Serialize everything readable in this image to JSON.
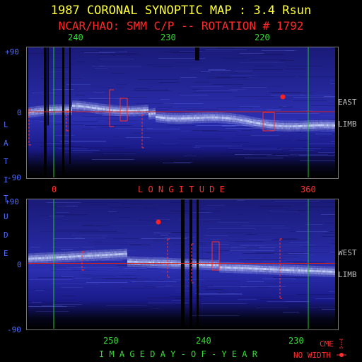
{
  "title": "1987 CORONAL SYNOPTIC MAP : 3.4 Rsun",
  "subtitle": "NCAR/HAO: SMM C/P -- ROTATION # 1792",
  "top_axis_labels": [
    "240",
    "230",
    "220"
  ],
  "lat_labels": [
    "+90",
    "0",
    "-90"
  ],
  "lat_title_letters": [
    "L",
    "A",
    "T",
    "I",
    "T",
    "U",
    "D",
    "E"
  ],
  "longitude_labels": [
    "0",
    "360"
  ],
  "longitude_title": "L O N G I T U D E",
  "side_labels": {
    "east": "EAST",
    "west": "WEST",
    "limb": "LIMB"
  },
  "day_labels": [
    "250",
    "240",
    "230"
  ],
  "bottom_title": "I M A G E   D A Y - O F - Y E A R",
  "legend": {
    "cme": "CME",
    "no_width": "NO WIDTH"
  },
  "colors": {
    "map_background": "#10106a",
    "streamer": "#d8e4ff",
    "marker": "#ff2020",
    "guide_green": "#22cc22",
    "equator_red": "#cc2222"
  }
}
